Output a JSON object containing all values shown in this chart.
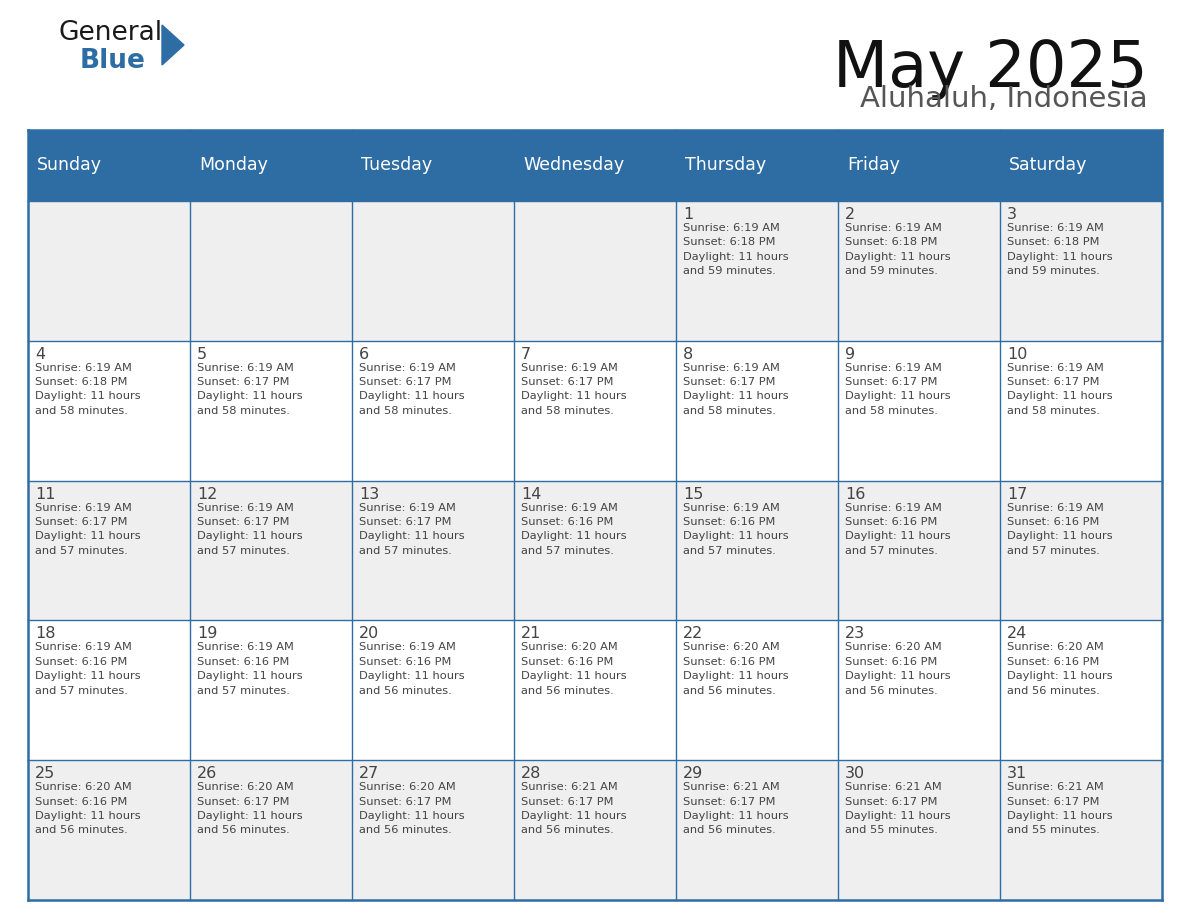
{
  "title": "May 2025",
  "subtitle": "Aluhaluh, Indonesia",
  "days_of_week": [
    "Sunday",
    "Monday",
    "Tuesday",
    "Wednesday",
    "Thursday",
    "Friday",
    "Saturday"
  ],
  "header_bg": "#2E6DA4",
  "header_fg": "#FFFFFF",
  "cell_bg_odd": "#EFEFEF",
  "cell_bg_even": "#FFFFFF",
  "text_color": "#444444",
  "border_color": "#2E6DA4",
  "logo_color_general": "#1a1a1a",
  "logo_color_blue": "#2E6DA4",
  "logo_triangle_color": "#2E6DA4",
  "calendar_data": [
    [
      "",
      "",
      "",
      "",
      "1\nSunrise: 6:19 AM\nSunset: 6:18 PM\nDaylight: 11 hours\nand 59 minutes.",
      "2\nSunrise: 6:19 AM\nSunset: 6:18 PM\nDaylight: 11 hours\nand 59 minutes.",
      "3\nSunrise: 6:19 AM\nSunset: 6:18 PM\nDaylight: 11 hours\nand 59 minutes."
    ],
    [
      "4\nSunrise: 6:19 AM\nSunset: 6:18 PM\nDaylight: 11 hours\nand 58 minutes.",
      "5\nSunrise: 6:19 AM\nSunset: 6:17 PM\nDaylight: 11 hours\nand 58 minutes.",
      "6\nSunrise: 6:19 AM\nSunset: 6:17 PM\nDaylight: 11 hours\nand 58 minutes.",
      "7\nSunrise: 6:19 AM\nSunset: 6:17 PM\nDaylight: 11 hours\nand 58 minutes.",
      "8\nSunrise: 6:19 AM\nSunset: 6:17 PM\nDaylight: 11 hours\nand 58 minutes.",
      "9\nSunrise: 6:19 AM\nSunset: 6:17 PM\nDaylight: 11 hours\nand 58 minutes.",
      "10\nSunrise: 6:19 AM\nSunset: 6:17 PM\nDaylight: 11 hours\nand 58 minutes."
    ],
    [
      "11\nSunrise: 6:19 AM\nSunset: 6:17 PM\nDaylight: 11 hours\nand 57 minutes.",
      "12\nSunrise: 6:19 AM\nSunset: 6:17 PM\nDaylight: 11 hours\nand 57 minutes.",
      "13\nSunrise: 6:19 AM\nSunset: 6:17 PM\nDaylight: 11 hours\nand 57 minutes.",
      "14\nSunrise: 6:19 AM\nSunset: 6:16 PM\nDaylight: 11 hours\nand 57 minutes.",
      "15\nSunrise: 6:19 AM\nSunset: 6:16 PM\nDaylight: 11 hours\nand 57 minutes.",
      "16\nSunrise: 6:19 AM\nSunset: 6:16 PM\nDaylight: 11 hours\nand 57 minutes.",
      "17\nSunrise: 6:19 AM\nSunset: 6:16 PM\nDaylight: 11 hours\nand 57 minutes."
    ],
    [
      "18\nSunrise: 6:19 AM\nSunset: 6:16 PM\nDaylight: 11 hours\nand 57 minutes.",
      "19\nSunrise: 6:19 AM\nSunset: 6:16 PM\nDaylight: 11 hours\nand 57 minutes.",
      "20\nSunrise: 6:19 AM\nSunset: 6:16 PM\nDaylight: 11 hours\nand 56 minutes.",
      "21\nSunrise: 6:20 AM\nSunset: 6:16 PM\nDaylight: 11 hours\nand 56 minutes.",
      "22\nSunrise: 6:20 AM\nSunset: 6:16 PM\nDaylight: 11 hours\nand 56 minutes.",
      "23\nSunrise: 6:20 AM\nSunset: 6:16 PM\nDaylight: 11 hours\nand 56 minutes.",
      "24\nSunrise: 6:20 AM\nSunset: 6:16 PM\nDaylight: 11 hours\nand 56 minutes."
    ],
    [
      "25\nSunrise: 6:20 AM\nSunset: 6:16 PM\nDaylight: 11 hours\nand 56 minutes.",
      "26\nSunrise: 6:20 AM\nSunset: 6:17 PM\nDaylight: 11 hours\nand 56 minutes.",
      "27\nSunrise: 6:20 AM\nSunset: 6:17 PM\nDaylight: 11 hours\nand 56 minutes.",
      "28\nSunrise: 6:21 AM\nSunset: 6:17 PM\nDaylight: 11 hours\nand 56 minutes.",
      "29\nSunrise: 6:21 AM\nSunset: 6:17 PM\nDaylight: 11 hours\nand 56 minutes.",
      "30\nSunrise: 6:21 AM\nSunset: 6:17 PM\nDaylight: 11 hours\nand 55 minutes.",
      "31\nSunrise: 6:21 AM\nSunset: 6:17 PM\nDaylight: 11 hours\nand 55 minutes."
    ]
  ]
}
